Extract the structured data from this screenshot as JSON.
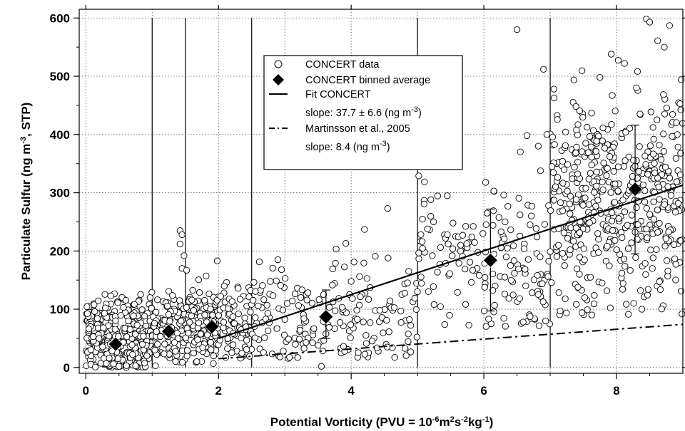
{
  "chart_data": {
    "type": "scatter",
    "xlabel": {
      "parts": [
        {
          "t": "Potential Vorticity  (PVU = 10",
          "sup": false
        },
        {
          "t": "-6",
          "sup": true
        },
        {
          "t": "m",
          "sup": false
        },
        {
          "t": "2",
          "sup": true
        },
        {
          "t": "s",
          "sup": false
        },
        {
          "t": "-2",
          "sup": true
        },
        {
          "t": "kg",
          "sup": false
        },
        {
          "t": "-1",
          "sup": true
        },
        {
          "t": ")",
          "sup": false
        }
      ]
    },
    "ylabel": {
      "parts": [
        {
          "t": "Particulate Sulfur (ng m",
          "sup": false
        },
        {
          "t": "-3",
          "sup": true
        },
        {
          "t": ", STP)",
          "sup": false
        }
      ]
    },
    "xlim": [
      -0.1,
      9.0
    ],
    "ylim": [
      -10,
      615
    ],
    "xticks": [
      0,
      2,
      4,
      6,
      8
    ],
    "yticks": [
      0,
      100,
      200,
      300,
      400,
      500,
      600
    ],
    "grid": true,
    "bin_edges_pvu": [
      1.0,
      1.5,
      2.5,
      5.0,
      7.0
    ],
    "series": [
      {
        "name": "CONCERT data",
        "marker": "open-circle",
        "clusters": [
          {
            "x_range": [
              0.0,
              1.0
            ],
            "y_mean": 50,
            "y_spread": 35,
            "y_min": 0,
            "count": 360
          },
          {
            "x_range": [
              1.0,
              1.5
            ],
            "y_mean": 62,
            "y_spread": 30,
            "y_min": 5,
            "count": 120
          },
          {
            "x_range": [
              1.5,
              2.0
            ],
            "y_mean": 70,
            "y_spread": 32,
            "y_min": 5,
            "count": 140
          },
          {
            "x_range": [
              2.0,
              2.5
            ],
            "y_mean": 75,
            "y_spread": 32,
            "y_min": 15,
            "count": 80
          },
          {
            "x_range": [
              2.5,
              5.0
            ],
            "y_mean": 90,
            "y_spread": 45,
            "y_min": 15,
            "count": 190
          },
          {
            "x_range": [
              5.0,
              7.0
            ],
            "y_mean": 180,
            "y_spread": 65,
            "y_min": 70,
            "count": 160
          },
          {
            "x_range": [
              7.0,
              9.0
            ],
            "y_mean": 290,
            "y_spread": 90,
            "y_min": 90,
            "count": 500
          }
        ],
        "outliers": [
          {
            "x": 1.42,
            "y": 235
          },
          {
            "x": 1.45,
            "y": 228
          },
          {
            "x": 1.42,
            "y": 212
          },
          {
            "x": 1.48,
            "y": 192
          },
          {
            "x": 1.45,
            "y": 170
          },
          {
            "x": 1.52,
            "y": 167
          },
          {
            "x": 1.98,
            "y": 183
          },
          {
            "x": 2.95,
            "y": 168
          },
          {
            "x": 3.92,
            "y": 213
          },
          {
            "x": 4.2,
            "y": 237
          },
          {
            "x": 4.55,
            "y": 273
          },
          {
            "x": 5.15,
            "y": 238
          },
          {
            "x": 5.45,
            "y": 228
          },
          {
            "x": 5.65,
            "y": 210
          },
          {
            "x": 6.05,
            "y": 265
          },
          {
            "x": 6.15,
            "y": 303
          },
          {
            "x": 6.3,
            "y": 296
          },
          {
            "x": 6.32,
            "y": 250
          },
          {
            "x": 6.5,
            "y": 580
          },
          {
            "x": 6.9,
            "y": 512
          },
          {
            "x": 6.65,
            "y": 398
          },
          {
            "x": 6.82,
            "y": 380
          },
          {
            "x": 6.55,
            "y": 370
          },
          {
            "x": 6.95,
            "y": 400
          },
          {
            "x": 8.45,
            "y": 598
          },
          {
            "x": 8.5,
            "y": 593
          },
          {
            "x": 8.8,
            "y": 587
          },
          {
            "x": 7.92,
            "y": 538
          },
          {
            "x": 8.62,
            "y": 561
          },
          {
            "x": 8.72,
            "y": 550
          },
          {
            "x": 8.12,
            "y": 522
          },
          {
            "x": 7.75,
            "y": 498
          },
          {
            "x": 8.3,
            "y": 480
          },
          {
            "x": 3.55,
            "y": 2
          },
          {
            "x": 1.05,
            "y": 3
          },
          {
            "x": 0.5,
            "y": 2
          }
        ]
      },
      {
        "name": "CONCERT binned average",
        "marker": "filled-diamond",
        "points": [
          {
            "x": 0.45,
            "y": 40
          },
          {
            "x": 1.25,
            "y": 62
          },
          {
            "x": 1.9,
            "y": 70
          },
          {
            "x": 3.62,
            "y": 87,
            "err_low": 50,
            "err_high": 133
          },
          {
            "x": 6.1,
            "y": 184,
            "err_low": 97,
            "err_high": 272
          },
          {
            "x": 8.28,
            "y": 306,
            "err_low": 195,
            "err_high": 416
          }
        ]
      },
      {
        "name": "Fit CONCERT",
        "line_style": "solid",
        "slope_text": "slope: 37.7 ± 6.6 (ng m^-3)",
        "points": [
          {
            "x": 2.0,
            "y": 50
          },
          {
            "x": 9.0,
            "y": 313
          }
        ]
      },
      {
        "name": "Martinsson et al., 2005",
        "line_style": "dash-dot",
        "slope_text": "slope: 8.4 (ng m^-3)",
        "points": [
          {
            "x": 2.0,
            "y": 15
          },
          {
            "x": 9.0,
            "y": 74
          }
        ]
      }
    ],
    "legend": {
      "position": "top-center",
      "entries": [
        {
          "symbol": "open-circle",
          "parts": [
            {
              "t": "CONCERT data",
              "sup": false
            }
          ]
        },
        {
          "symbol": "filled-diamond",
          "parts": [
            {
              "t": "CONCERT binned average",
              "sup": false
            }
          ]
        },
        {
          "symbol": "solid-line",
          "parts": [
            {
              "t": "Fit CONCERT",
              "sup": false
            }
          ]
        },
        {
          "symbol": "none",
          "parts": [
            {
              "t": "slope: 37.7 ± 6.6 (ng m",
              "sup": false
            },
            {
              "t": "-3",
              "sup": true
            },
            {
              "t": ")",
              "sup": false
            }
          ]
        },
        {
          "symbol": "dash-dot-line",
          "parts": [
            {
              "t": "Martinsson et al., 2005",
              "sup": false
            }
          ]
        },
        {
          "symbol": "none",
          "parts": [
            {
              "t": "slope: 8.4 (ng m",
              "sup": false
            },
            {
              "t": "-3",
              "sup": true
            },
            {
              "t": ")",
              "sup": false
            }
          ]
        }
      ]
    }
  }
}
